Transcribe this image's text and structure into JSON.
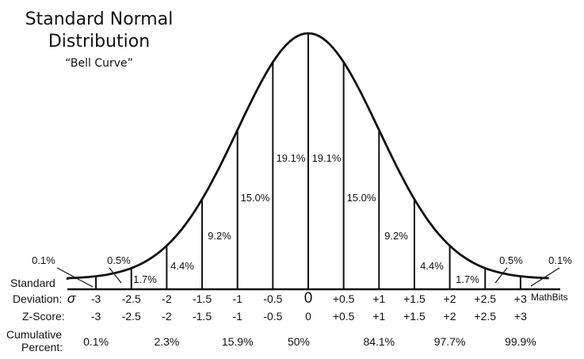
{
  "title": {
    "line1": "Standard Normal",
    "line2": "Distribution",
    "subtitle": "“Bell Curve”"
  },
  "chart_data": {
    "type": "area",
    "z_ticks": [
      -3,
      -2.5,
      -2,
      -1.5,
      -1,
      -0.5,
      0,
      0.5,
      1,
      1.5,
      2,
      2.5,
      3
    ],
    "sigma_labels": [
      "-3",
      "-2.5",
      "-2",
      "-1.5",
      "-1",
      "-0.5",
      "0",
      "+0.5",
      "+1",
      "+1.5",
      "+2",
      "+2.5",
      "+3"
    ],
    "z_labels": [
      "-3",
      "-2.5",
      "-2",
      "-1.5",
      "-1",
      "-0.5",
      "0",
      "+0.5",
      "+1",
      "+1.5",
      "+2",
      "+2.5",
      "+3"
    ],
    "area_percents": [
      {
        "from": -3.5,
        "to": -3,
        "label": "0.1%"
      },
      {
        "from": -3,
        "to": -2.5,
        "label": "0.5%"
      },
      {
        "from": -2.5,
        "to": -2,
        "label": "1.7%"
      },
      {
        "from": -2,
        "to": -1.5,
        "label": "4.4%"
      },
      {
        "from": -1.5,
        "to": -1,
        "label": "9.2%"
      },
      {
        "from": -1,
        "to": -0.5,
        "label": "15.0%"
      },
      {
        "from": -0.5,
        "to": 0,
        "label": "19.1%"
      },
      {
        "from": 0,
        "to": 0.5,
        "label": "19.1%"
      },
      {
        "from": 0.5,
        "to": 1,
        "label": "15.0%"
      },
      {
        "from": 1,
        "to": 1.5,
        "label": "9.2%"
      },
      {
        "from": 1.5,
        "to": 2,
        "label": "4.4%"
      },
      {
        "from": 2,
        "to": 2.5,
        "label": "1.7%"
      },
      {
        "from": 2.5,
        "to": 3,
        "label": "0.5%"
      },
      {
        "from": 3,
        "to": 3.5,
        "label": "0.1%"
      }
    ],
    "cumulative": [
      {
        "z": -3,
        "label": "0.1%"
      },
      {
        "z": -2,
        "label": "2.3%"
      },
      {
        "z": -1,
        "label": "15.9%"
      },
      {
        "z": 0,
        "label": "50%"
      },
      {
        "z": 1,
        "label": "84.1%"
      },
      {
        "z": 2,
        "label": "97.7%"
      },
      {
        "z": 3,
        "label": "99.9%"
      }
    ],
    "row_labels": {
      "sd_line1": "Standard",
      "sd_line2": "Deviation:",
      "sigma": "σ",
      "z": "Z-Score:",
      "cum_line1": "Cumulative",
      "cum_line2": "Percent:"
    },
    "watermark": "MathBits"
  }
}
